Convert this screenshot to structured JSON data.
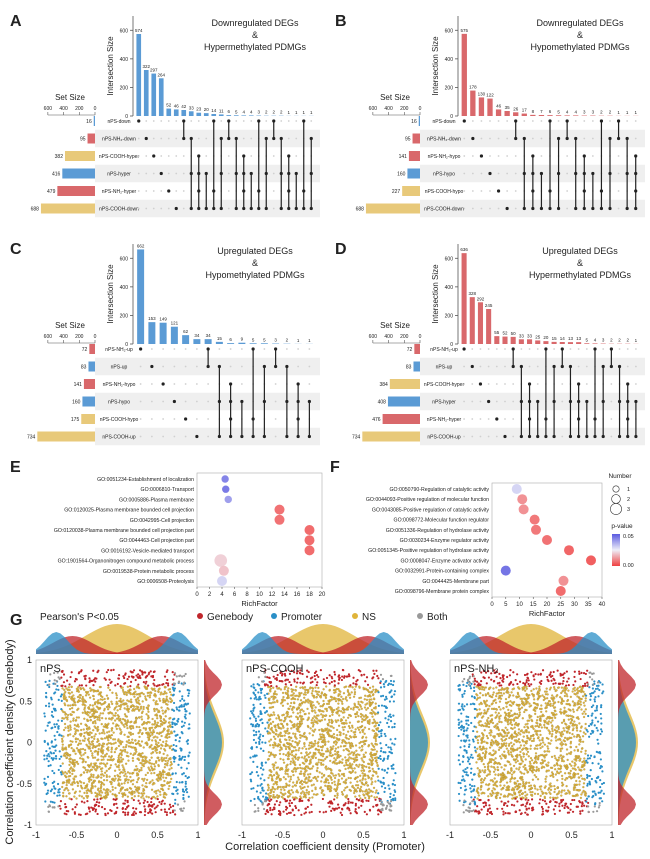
{
  "colors": {
    "blue": "#5b9bd5",
    "red": "#d9686b",
    "gold": "#e8c97a",
    "dark": "#222222",
    "stripe": "#efefef",
    "gene": "#c0262b",
    "prom": "#2a8fc7",
    "ns": "#e0b43a",
    "both": "#999999"
  },
  "upset_common": {
    "ylabel": "Intersection Size",
    "set_size_label": "Set Size",
    "set_ticks": [
      "600",
      "400",
      "200",
      "0"
    ]
  },
  "upset_panels": [
    {
      "letter": "A",
      "title": [
        "Downregulated DEGs",
        "&",
        "Hypermethylated PDMGs"
      ],
      "bar_color": "blue",
      "counts": [
        574,
        322,
        297,
        264,
        52,
        46,
        42,
        33,
        23,
        20,
        14,
        11,
        6,
        5,
        4,
        4,
        3,
        2,
        2,
        2,
        1,
        1,
        1,
        1
      ],
      "sets": [
        {
          "name": "nPS-down",
          "size": 16,
          "color": "blue"
        },
        {
          "name": "nPS-NH₂-down",
          "size": 95,
          "color": "red"
        },
        {
          "name": "nPS-COOH-hyper",
          "size": 382,
          "color": "gold"
        },
        {
          "name": "nPS-hyper",
          "size": 416,
          "color": "blue"
        },
        {
          "name": "nPS-NH₂-hyper",
          "size": 479,
          "color": "red"
        },
        {
          "name": "nPS-COOH-down",
          "size": 688,
          "color": "gold"
        }
      ]
    },
    {
      "letter": "B",
      "title": [
        "Downregulated DEGs",
        "&",
        "Hypomethylated PDMGs"
      ],
      "bar_color": "red",
      "counts": [
        575,
        178,
        130,
        122,
        46,
        35,
        26,
        17,
        8,
        7,
        6,
        5,
        4,
        4,
        3,
        3,
        2,
        2,
        1,
        1,
        1
      ],
      "sets": [
        {
          "name": "nPS-down",
          "size": 16,
          "color": "blue"
        },
        {
          "name": "nPS-NH₂-down",
          "size": 95,
          "color": "red"
        },
        {
          "name": "nPS-NH₂-hypo",
          "size": 141,
          "color": "red"
        },
        {
          "name": "nPS-hypo",
          "size": 160,
          "color": "blue"
        },
        {
          "name": "nPS-COOH-hypo",
          "size": 227,
          "color": "gold"
        },
        {
          "name": "nPS-COOH-down",
          "size": 688,
          "color": "gold"
        }
      ]
    },
    {
      "letter": "C",
      "title": [
        "Upregulated DEGs",
        "&",
        "Hypomethylated PDMGs"
      ],
      "bar_color": "blue",
      "counts": [
        662,
        153,
        149,
        121,
        62,
        34,
        34,
        15,
        6,
        9,
        5,
        5,
        3,
        2,
        1,
        1
      ],
      "sets": [
        {
          "name": "nPS-NH₂-up",
          "size": 72,
          "color": "red"
        },
        {
          "name": "nPS-up",
          "size": 83,
          "color": "blue"
        },
        {
          "name": "nPS-NH₂-hypo",
          "size": 141,
          "color": "red"
        },
        {
          "name": "nPS-hypo",
          "size": 160,
          "color": "blue"
        },
        {
          "name": "nPS-COOH-hypo",
          "size": 175,
          "color": "gold"
        },
        {
          "name": "nPS-COOH-up",
          "size": 734,
          "color": "gold"
        }
      ]
    },
    {
      "letter": "D",
      "title": [
        "Upregulated DEGs",
        "&",
        "Hypermethylated PDMGs"
      ],
      "bar_color": "red",
      "counts": [
        636,
        328,
        292,
        245,
        55,
        52,
        50,
        33,
        33,
        25,
        20,
        15,
        14,
        13,
        13,
        5,
        4,
        3,
        2,
        2,
        2,
        1
      ],
      "sets": [
        {
          "name": "nPS-NH₂-up",
          "size": 72,
          "color": "red"
        },
        {
          "name": "nPS-up",
          "size": 83,
          "color": "blue"
        },
        {
          "name": "nPS-COOH-hyper",
          "size": 384,
          "color": "gold"
        },
        {
          "name": "nPS-hyper",
          "size": 408,
          "color": "blue"
        },
        {
          "name": "nPS-NH₂-hyper",
          "size": 476,
          "color": "red"
        },
        {
          "name": "nPS-COOH-up",
          "size": 734,
          "color": "gold"
        }
      ]
    }
  ],
  "chart_data": [
    {
      "type": "bar",
      "panel": "A",
      "title": "Downregulated DEGs & Hypermethylated PDMGs",
      "ylabel": "Intersection Size",
      "values": [
        574,
        322,
        297,
        264,
        52,
        46,
        42,
        33,
        23,
        20,
        14,
        11,
        6,
        5,
        4,
        4,
        3,
        2,
        2,
        2,
        1,
        1,
        1,
        1
      ]
    },
    {
      "type": "bar",
      "panel": "B",
      "title": "Downregulated DEGs & Hypomethylated PDMGs",
      "ylabel": "Intersection Size",
      "values": [
        575,
        178,
        130,
        122,
        46,
        35,
        26,
        17,
        8,
        7,
        6,
        5,
        4,
        4,
        3,
        3,
        2,
        2,
        1,
        1,
        1
      ]
    },
    {
      "type": "bar",
      "panel": "C",
      "title": "Upregulated DEGs & Hypomethylated PDMGs",
      "ylabel": "Intersection Size",
      "values": [
        662,
        153,
        149,
        121,
        62,
        34,
        34,
        15,
        6,
        9,
        5,
        5,
        3,
        2,
        1,
        1
      ]
    },
    {
      "type": "bar",
      "panel": "D",
      "title": "Upregulated DEGs & Hypermethylated PDMGs",
      "ylabel": "Intersection Size",
      "values": [
        636,
        328,
        292,
        245,
        55,
        52,
        50,
        33,
        33,
        25,
        20,
        15,
        14,
        13,
        13,
        5,
        4,
        3,
        2,
        2,
        2,
        1
      ]
    },
    {
      "type": "scatter",
      "panel": "E",
      "xlabel": "RichFactor",
      "xlim": [
        0,
        20
      ],
      "xticks": [
        "0",
        "2",
        "4",
        "6",
        "8",
        "10",
        "12",
        "14",
        "16",
        "18",
        "20"
      ],
      "terms": [
        "GO:0051234-Establishment of localization",
        "GO:0006810-Transport",
        "GO:0005886-Plasma membrane",
        "GO:0120025-Plasma membrane bounded cell projection",
        "GO:0042995-Cell projection",
        "GO:0120038-Plasma membrane bounded cell projection part",
        "GO:0044463-Cell projection part",
        "GO:0016192-Vesicle-mediated transport",
        "GO:1901564-Organonitrogen compound metabolic process",
        "GO:0019538-Protein metabolic process",
        "GO:0006508-Proteolysis"
      ],
      "x": [
        4.5,
        4.6,
        5.0,
        13.2,
        13.2,
        18.0,
        18.0,
        18.0,
        3.8,
        4.3,
        4.0
      ],
      "number": [
        1,
        1,
        1,
        2,
        2,
        2,
        2,
        2,
        3,
        2,
        2
      ],
      "pvalue": [
        0.045,
        0.047,
        0.04,
        0.005,
        0.005,
        0.004,
        0.004,
        0.004,
        0.02,
        0.018,
        0.03
      ]
    },
    {
      "type": "scatter",
      "panel": "F",
      "xlabel": "RichFactor",
      "xlim": [
        0,
        40
      ],
      "xticks": [
        "0",
        "5",
        "10",
        "15",
        "20",
        "25",
        "30",
        "35",
        "40"
      ],
      "terms": [
        "GO:0050790-Regulation of catalytic activity",
        "GO:0044093-Positive regulation of molecular function",
        "GO:0043085-Positive regulation of catalytic activity",
        "GO:0098772-Molecular function regulator",
        "GO:0051336-Regulation of hydrolase activity",
        "GO:0030234-Enzyme regulator activity",
        "GO:0051345-Positive regulation of hydrolase activity",
        "GO:0008047-Enzyme activator activity",
        "GO:0032991-Protein-containing complex",
        "GO:0044425-Membrane part",
        "GO:0098796-Membrane protein complex"
      ],
      "x": [
        9,
        11,
        11.5,
        15.5,
        16,
        20,
        28,
        36,
        5,
        26,
        25
      ],
      "number": [
        2,
        2,
        2,
        2,
        2,
        2,
        2,
        2,
        2,
        2,
        2
      ],
      "pvalue": [
        0.03,
        0.01,
        0.01,
        0.006,
        0.006,
        0.005,
        0.003,
        0.002,
        0.048,
        0.01,
        0.004
      ]
    },
    {
      "type": "scatter",
      "panel": "G",
      "title": "Pearson's P<0.05",
      "xlabel": "Correlation coefficient density (Promoter)",
      "ylabel": "Correlation coefficient density (Genebody)",
      "xlim": [
        -1,
        1
      ],
      "ylim": [
        -1,
        1
      ],
      "subplots": [
        "nPS",
        "nPS-COOH",
        "nPS-NH₂"
      ],
      "series": [
        {
          "name": "Genebody"
        },
        {
          "name": "Promoter"
        },
        {
          "name": "NS"
        },
        {
          "name": "Both"
        }
      ]
    }
  ],
  "labels": {
    "panels": {
      "E": "E",
      "F": "F",
      "G": "G"
    },
    "richfactor": "RichFactor",
    "legend_number_title": "Number",
    "legend_number_values": [
      "1",
      "2",
      "3"
    ],
    "legend_pvalue_title": "p-value",
    "legend_pvalue_top": "0.05",
    "legend_pvalue_bottom": "0.00",
    "g_title": "Pearson's P<0.05",
    "g_legend": [
      "Genebody",
      "Promoter",
      "NS",
      "Both"
    ],
    "g_subplots": [
      "nPS",
      "nPS-COOH",
      "nPS-NH₂"
    ],
    "g_xlabel": "Correlation coefficient density (Promoter)",
    "g_ylabel": "Correlation coefficient density (Genebody)",
    "g_xticks": [
      "-1",
      "-0.5",
      "0",
      "0.5",
      "1"
    ],
    "g_yticks": [
      "1",
      "0.5",
      "0",
      "-0.5",
      "-1"
    ]
  }
}
